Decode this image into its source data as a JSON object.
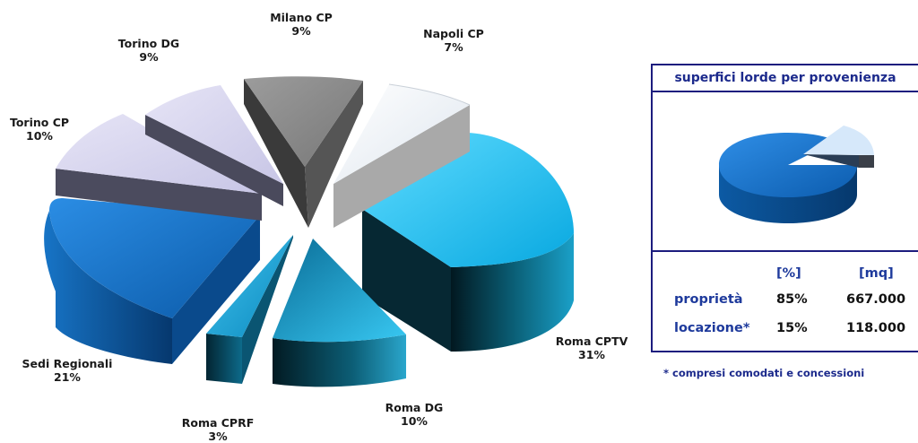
{
  "chart_data": [
    {
      "type": "pie",
      "title": "",
      "categories": [
        "Milano CP",
        "Napoli CP",
        "Roma CPTV",
        "Roma DG",
        "Roma CPRF",
        "Sedi Regionali",
        "Torino CP",
        "Torino DG"
      ],
      "values": [
        9,
        7,
        31,
        10,
        3,
        21,
        10,
        9
      ],
      "value_labels": [
        "9%",
        "7%",
        "31%",
        "10%",
        "3%",
        "21%",
        "10%",
        "9%"
      ],
      "colors": [
        "#8c8c8c",
        "#eef2f8",
        "#20c0f0",
        "#1aa8dc",
        "#1898cc",
        "#1677cf",
        "#cfcdeb",
        "#d8d6f0"
      ]
    },
    {
      "type": "pie",
      "title": "superfici lorde per provenienza",
      "categories": [
        "proprietà",
        "locazione*"
      ],
      "values": [
        85,
        15
      ],
      "colors": [
        "#1a74c9",
        "#d6e8fa"
      ]
    }
  ],
  "table": {
    "headers": [
      "[%]",
      "[mq]"
    ],
    "rows": [
      {
        "label": "proprietà",
        "percent": "85%",
        "mq": "667.000"
      },
      {
        "label": "locazione*",
        "percent": "15%",
        "mq": "118.000"
      }
    ]
  },
  "footnote": "* compresi comodati e concessioni"
}
